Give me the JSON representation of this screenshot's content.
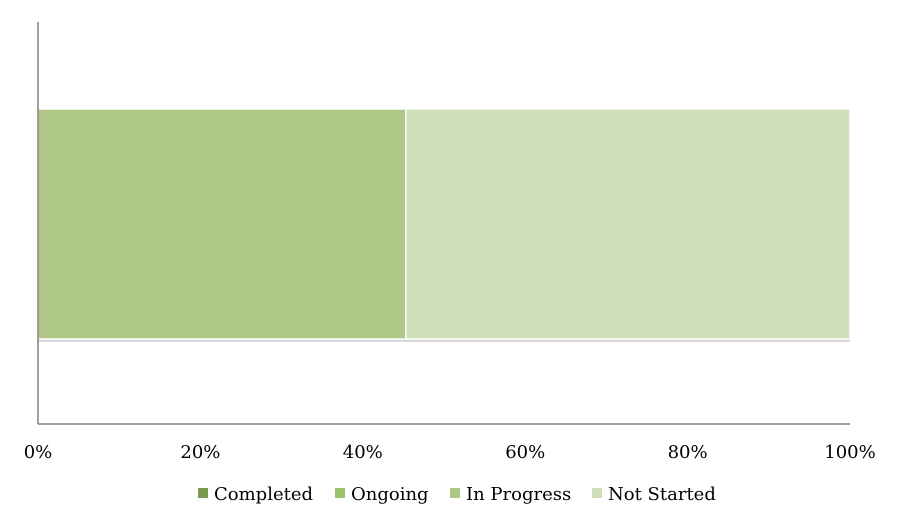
{
  "chart_data": {
    "type": "bar",
    "orientation": "horizontal",
    "stacking": "percent",
    "categories": [
      ""
    ],
    "series": [
      {
        "name": "Completed",
        "values": [
          0
        ],
        "color": "#7a9a4f"
      },
      {
        "name": "Ongoing",
        "values": [
          0
        ],
        "color": "#9dc36a"
      },
      {
        "name": "In Progress",
        "values": [
          45.3
        ],
        "color": "#aec787"
      },
      {
        "name": "Not Started",
        "values": [
          54.7
        ],
        "color": "#cfddb8"
      }
    ],
    "xlim": [
      0,
      100
    ],
    "x_ticks": [
      0,
      20,
      40,
      60,
      80,
      100
    ],
    "x_tick_labels": [
      "0%",
      "20%",
      "40%",
      "60%",
      "80%",
      "100%"
    ],
    "title": "",
    "xlabel": "",
    "ylabel": "",
    "grid": false,
    "legend_position": "bottom"
  }
}
